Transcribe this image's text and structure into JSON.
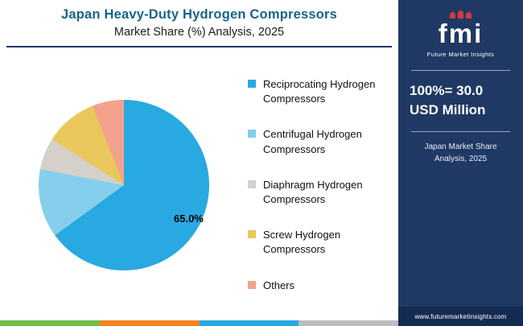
{
  "theme": {
    "sidebar_bg": "#1F3864",
    "sidebar_footer_bg": "#152C52",
    "title_color": "#15658A",
    "rule_color": "#1F3864",
    "logo_accent": "#D23B3B"
  },
  "header": {
    "title_line1": "Japan Heavy-Duty Hydrogen Compressors",
    "title_line2": "Market Share (%) Analysis, 2025"
  },
  "chart_data": {
    "type": "pie",
    "title": "Japan Heavy-Duty Hydrogen Compressors Market Share (%) Analysis, 2025",
    "labels": [
      "Reciprocating Hydrogen Compressors",
      "Centrifugal Hydrogen Compressors",
      "Diaphragm Hydrogen Compressors",
      "Screw Hydrogen Compressors",
      "Others"
    ],
    "values": [
      65.0,
      13.0,
      6.0,
      10.0,
      6.0
    ],
    "colors": [
      "#29A9E1",
      "#85CFEC",
      "#D5D0C9",
      "#EAC75B",
      "#F2A28C"
    ],
    "annotation": "65.0%",
    "annotated_slice": "Reciprocating Hydrogen Compressors",
    "start_angle_deg": 0,
    "direction": "clockwise",
    "legend_position": "right"
  },
  "sidebar": {
    "logo_text": "fmi",
    "logo_subtitle": "Future Market Insights",
    "stat_value": "100%= 30.0",
    "stat_unit": "USD Million",
    "caption": "Japan Market Share Analysis, 2025",
    "website": "www.futuremarketinsights.com"
  },
  "footer_strip": {
    "colors": [
      "#6CBE45",
      "#F58220",
      "#27AAE1",
      "#BCBEC0"
    ]
  }
}
